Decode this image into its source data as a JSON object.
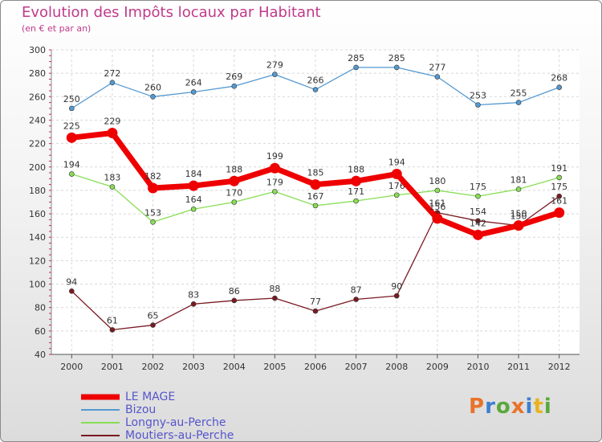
{
  "chart_data": {
    "type": "line",
    "title": "Evolution des Impôts locaux par Habitant",
    "subtitle": "(en € et par an)",
    "x": [
      "2000",
      "2001",
      "2002",
      "2003",
      "2004",
      "2005",
      "2006",
      "2007",
      "2008",
      "2009",
      "2010",
      "2011",
      "2012"
    ],
    "ylim": [
      40,
      300
    ],
    "yticks": [
      40,
      60,
      80,
      100,
      120,
      140,
      160,
      180,
      200,
      220,
      240,
      260,
      280,
      300
    ],
    "grid": true,
    "series": [
      {
        "name": "Moutiers-au-Perche",
        "color": "#7a1a22",
        "values": [
          94,
          61,
          65,
          83,
          86,
          88,
          77,
          87,
          90,
          161,
          154,
          150,
          175
        ]
      },
      {
        "name": "Longny-au-Perche",
        "color": "#88dd55",
        "values": [
          194,
          183,
          153,
          164,
          170,
          179,
          167,
          171,
          176,
          180,
          175,
          181,
          191
        ]
      },
      {
        "name": "Bizou",
        "color": "#5599d0",
        "values": [
          250,
          272,
          260,
          264,
          269,
          279,
          266,
          285,
          285,
          277,
          253,
          255,
          268
        ]
      },
      {
        "name": "LE MAGE",
        "color": "#ee0000",
        "values": [
          225,
          229,
          182,
          184,
          188,
          199,
          185,
          188,
          194,
          156,
          142,
          150,
          161
        ]
      }
    ],
    "legend": [
      "LE MAGE",
      "Bizou",
      "Longny-au-Perche",
      "Moutiers-au-Perche"
    ]
  },
  "logo": {
    "letters": [
      "P",
      "r",
      "o",
      "x",
      "i",
      "t",
      "i"
    ],
    "colors": [
      "#e8732a",
      "#3b7fd0",
      "#5aa83a",
      "#e8732a",
      "#3b7fd0",
      "#e8b320",
      "#5aa83a"
    ]
  }
}
